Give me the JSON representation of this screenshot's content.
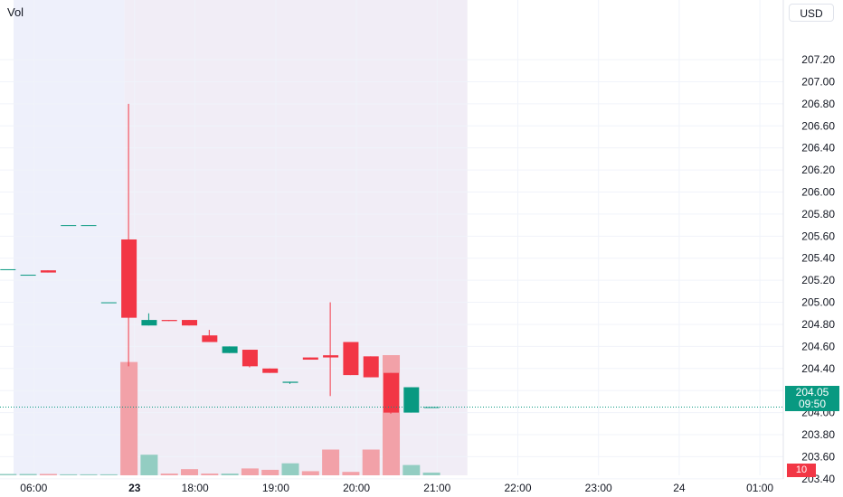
{
  "header": {
    "indicator_label": "Vol",
    "currency": "USD"
  },
  "last_price": {
    "value": "204.05",
    "countdown": "09:50"
  },
  "volume_badge": "10",
  "colors": {
    "up": "#089981",
    "down": "#f23645",
    "vol_up": "#93cdc2",
    "vol_down": "#f2a1a8",
    "premarket_bg": "#eef0fb",
    "postmarket_bg": "#f1edf6",
    "grid": "#f0f3fa"
  },
  "chart_data": {
    "type": "candlestick",
    "y_axis": {
      "ticks": [
        203.4,
        203.6,
        203.8,
        204.0,
        204.2,
        204.4,
        204.6,
        204.8,
        205.0,
        205.2,
        205.4,
        205.6,
        205.8,
        206.0,
        206.2,
        206.4,
        206.6,
        206.8,
        207.0,
        207.2
      ],
      "tick_labels": [
        "203.40",
        "203.60",
        "203.80",
        "204.00",
        "204.20",
        "204.40",
        "204.60",
        "204.80",
        "205.00",
        "205.20",
        "205.40",
        "205.60",
        "205.80",
        "206.00",
        "206.20",
        "206.40",
        "206.60",
        "206.80",
        "207.00",
        "207.20"
      ]
    },
    "x_axis": {
      "ticks": [
        {
          "label": "06:00",
          "t": 1
        },
        {
          "label": "23",
          "t": 6,
          "bold": true
        },
        {
          "label": "18:00",
          "t": 9
        },
        {
          "label": "19:00",
          "t": 13
        },
        {
          "label": "20:00",
          "t": 17
        },
        {
          "label": "21:00",
          "t": 21
        },
        {
          "label": "22:00",
          "t": 25
        },
        {
          "label": "23:00",
          "t": 29
        },
        {
          "label": "24",
          "t": 33
        },
        {
          "label": "01:00",
          "t": 37
        }
      ]
    },
    "sessions": [
      {
        "type": "pre-market",
        "from": 0,
        "to": 5.5
      },
      {
        "type": "post-market",
        "from": 5.5,
        "to": 22.5
      }
    ],
    "candles": [
      {
        "t": -0.3,
        "o": 205.3,
        "h": 205.3,
        "l": 205.3,
        "c": 205.3,
        "v": 0.04
      },
      {
        "t": 0.7,
        "o": 205.25,
        "h": 205.25,
        "l": 205.25,
        "c": 205.25,
        "v": 0.04
      },
      {
        "t": 1.7,
        "o": 205.29,
        "h": 205.29,
        "l": 205.27,
        "c": 205.27,
        "v": 0.04
      },
      {
        "t": 2.7,
        "o": 205.7,
        "h": 205.7,
        "l": 205.7,
        "c": 205.7,
        "v": 0.03
      },
      {
        "t": 3.7,
        "o": 205.7,
        "h": 205.7,
        "l": 205.7,
        "c": 205.7,
        "v": 0.03
      },
      {
        "t": 4.7,
        "o": 205.0,
        "h": 205.0,
        "l": 205.0,
        "c": 205.0,
        "v": 0.03
      },
      {
        "t": 5.7,
        "o": 205.57,
        "h": 206.8,
        "l": 204.42,
        "c": 204.86,
        "v": 3.3
      },
      {
        "t": 6.7,
        "o": 204.79,
        "h": 204.9,
        "l": 204.79,
        "c": 204.84,
        "v": 0.6
      },
      {
        "t": 7.7,
        "o": 204.84,
        "h": 204.84,
        "l": 204.83,
        "c": 204.83,
        "v": 0.05
      },
      {
        "t": 8.7,
        "o": 204.84,
        "h": 204.84,
        "l": 204.79,
        "c": 204.79,
        "v": 0.18
      },
      {
        "t": 9.7,
        "o": 204.7,
        "h": 204.75,
        "l": 204.64,
        "c": 204.64,
        "v": 0.05
      },
      {
        "t": 10.7,
        "o": 204.54,
        "h": 204.6,
        "l": 204.54,
        "c": 204.6,
        "v": 0.05
      },
      {
        "t": 11.7,
        "o": 204.57,
        "h": 204.57,
        "l": 204.41,
        "c": 204.42,
        "v": 0.2
      },
      {
        "t": 12.7,
        "o": 204.4,
        "h": 204.4,
        "l": 204.36,
        "c": 204.36,
        "v": 0.16
      },
      {
        "t": 13.7,
        "o": 204.27,
        "h": 204.28,
        "l": 204.26,
        "c": 204.28,
        "v": 0.35
      },
      {
        "t": 14.7,
        "o": 204.5,
        "h": 204.5,
        "l": 204.48,
        "c": 204.48,
        "v": 0.12
      },
      {
        "t": 15.7,
        "o": 204.52,
        "h": 205.0,
        "l": 204.15,
        "c": 204.5,
        "v": 0.75
      },
      {
        "t": 16.7,
        "o": 204.64,
        "h": 204.64,
        "l": 204.34,
        "c": 204.34,
        "v": 0.1
      },
      {
        "t": 17.7,
        "o": 204.51,
        "h": 204.51,
        "l": 204.32,
        "c": 204.32,
        "v": 0.75
      },
      {
        "t": 18.7,
        "o": 204.36,
        "h": 204.36,
        "l": 203.99,
        "c": 204.0,
        "v": 3.5
      },
      {
        "t": 19.7,
        "o": 204.0,
        "h": 204.23,
        "l": 204.0,
        "c": 204.23,
        "v": 0.3
      },
      {
        "t": 20.7,
        "o": 204.05,
        "h": 204.05,
        "l": 204.05,
        "c": 204.05,
        "v": 0.08
      }
    ]
  }
}
